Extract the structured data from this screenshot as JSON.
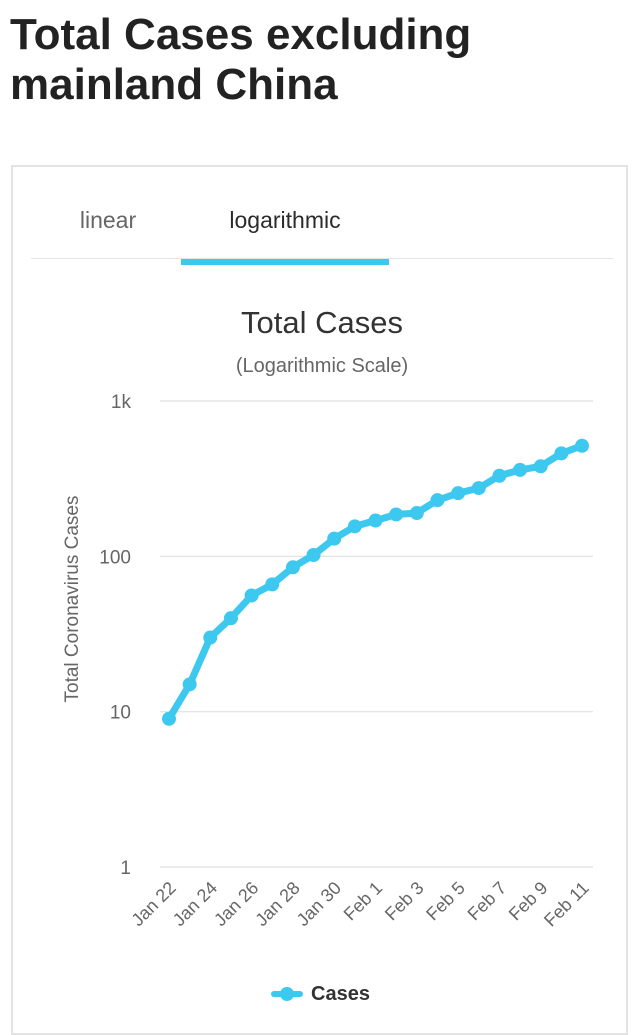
{
  "page": {
    "heading": "Total Cases excluding mainland China"
  },
  "tabs": {
    "linear": "linear",
    "logarithmic": "logarithmic"
  },
  "colors": {
    "accent": "#3cc8ef",
    "grid": "#e6e6e6",
    "axis_text": "#666666",
    "title_text": "#333333"
  },
  "chart_data": {
    "type": "line",
    "title": "Total Cases",
    "subtitle": "(Logarithmic Scale)",
    "ylabel": "Total Coronavirus Cases",
    "xlabel": "",
    "yscale": "log",
    "ylim": [
      1,
      1000
    ],
    "yticks": [
      {
        "value": 1,
        "label": "1"
      },
      {
        "value": 10,
        "label": "10"
      },
      {
        "value": 100,
        "label": "100"
      },
      {
        "value": 1000,
        "label": "1k"
      }
    ],
    "categories": [
      "Jan 22",
      "Jan 23",
      "Jan 24",
      "Jan 25",
      "Jan 26",
      "Jan 27",
      "Jan 28",
      "Jan 29",
      "Jan 30",
      "Jan 31",
      "Feb 1",
      "Feb 2",
      "Feb 3",
      "Feb 4",
      "Feb 5",
      "Feb 6",
      "Feb 7",
      "Feb 8",
      "Feb 9",
      "Feb 10",
      "Feb 11"
    ],
    "xtick_labels": [
      "Jan 22",
      "Jan 24",
      "Jan 26",
      "Jan 28",
      "Jan 30",
      "Feb 1",
      "Feb 3",
      "Feb 5",
      "Feb 7",
      "Feb 9",
      "Feb 11"
    ],
    "series": [
      {
        "name": "Cases",
        "values": [
          9,
          15,
          30,
          40,
          56,
          66,
          85,
          102,
          130,
          156,
          170,
          186,
          190,
          230,
          255,
          275,
          330,
          360,
          380,
          460,
          515
        ]
      }
    ],
    "legend": [
      "Cases"
    ],
    "grid": true,
    "legend_position": "bottom-center"
  }
}
